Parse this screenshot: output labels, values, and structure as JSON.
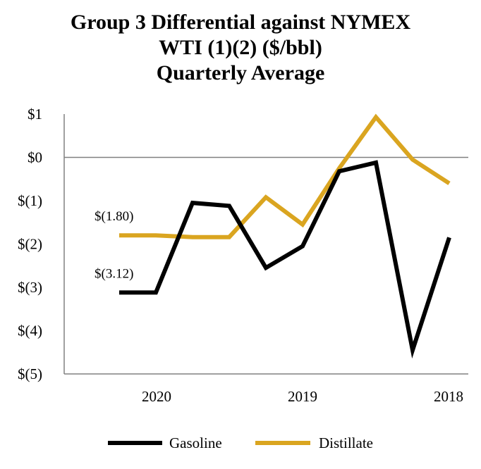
{
  "chart_data": {
    "type": "line",
    "title_lines": [
      "Group 3 Differential against NYMEX",
      "WTI (1)(2) ($/bbl)",
      "Quarterly Average"
    ],
    "x_tick_labels": [
      "2020",
      "2019",
      "2018"
    ],
    "y_tick_labels": [
      "$1",
      "$0",
      "$(1)",
      "$(2)",
      "$(3)",
      "$(4)",
      "$(5)"
    ],
    "y_tick_values": [
      1,
      0,
      -1,
      -2,
      -3,
      -4,
      -5
    ],
    "ylim": [
      -5,
      1
    ],
    "x_count": 10,
    "series": [
      {
        "name": "Gasoline",
        "color": "#000000",
        "values": [
          -3.12,
          -3.12,
          -1.05,
          -1.12,
          -2.55,
          -2.05,
          -0.32,
          -0.12,
          -4.45,
          -1.85
        ]
      },
      {
        "name": "Distillate",
        "color": "#DAA520",
        "values": [
          -1.8,
          -1.8,
          -1.84,
          -1.84,
          -0.92,
          -1.55,
          -0.25,
          0.93,
          -0.05,
          -0.6
        ]
      }
    ],
    "data_labels": [
      {
        "text": "$(1.80)",
        "series": "Distillate",
        "index": 0
      },
      {
        "text": "$(3.12)",
        "series": "Gasoline",
        "index": 0
      }
    ],
    "zero_line": true,
    "legend_position": "bottom-center"
  }
}
